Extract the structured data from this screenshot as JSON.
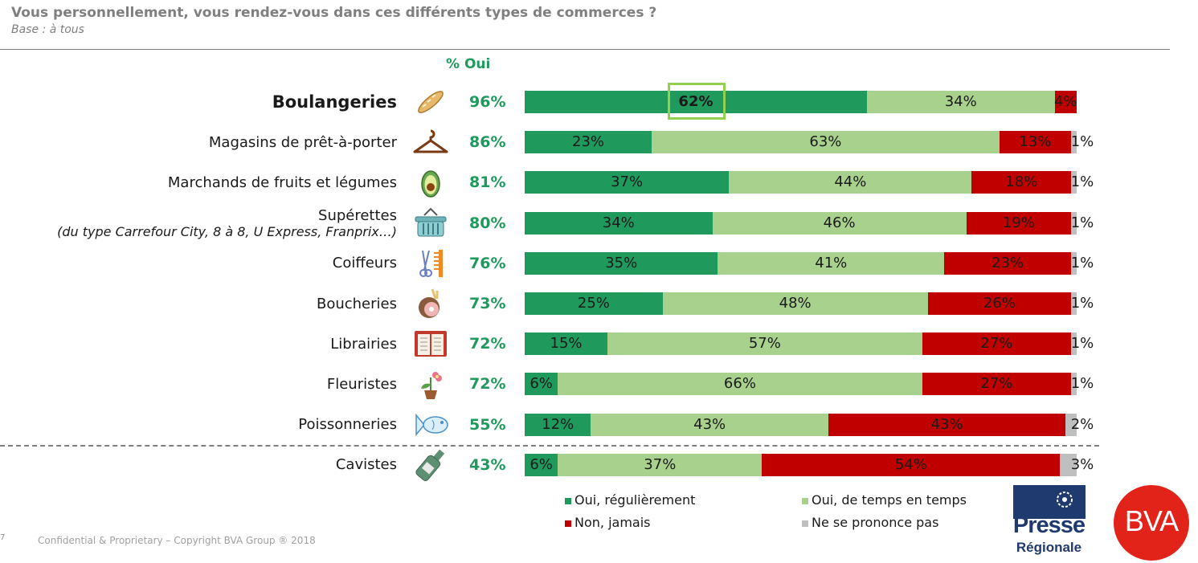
{
  "header": {
    "title": "Vous personnellement, vous rendez-vous dans ces différents types de commerces ?",
    "subtitle": "Base : à tous",
    "oui_column": "% Oui"
  },
  "colors": {
    "regulierement": "#1f9a5c",
    "de_temps_en_temps": "#a9d18e",
    "jamais": "#c00000",
    "nsp": "#bfbfbf",
    "oui_text": "#1f9a5c"
  },
  "chart_data": {
    "type": "bar",
    "orientation": "horizontal",
    "stacked": true,
    "percent_scale": true,
    "series_names": [
      "Oui, régulièrement",
      "Oui, de temps en temps",
      "Non, jamais",
      "Ne se prononce pas"
    ],
    "rows": [
      {
        "category": "Boulangeries",
        "bold": true,
        "icon": "baguette-icon",
        "oui": "96%",
        "values": [
          62,
          34,
          4,
          0
        ],
        "labels": [
          "62%",
          "34%",
          "4%",
          ""
        ]
      },
      {
        "category": "Magasins de prêt-à-porter",
        "icon": "hanger-icon",
        "oui": "86%",
        "values": [
          23,
          63,
          13,
          1
        ],
        "labels": [
          "23%",
          "63%",
          "13%",
          "1%"
        ]
      },
      {
        "category": "Marchands de fruits et légumes",
        "icon": "avocado-icon",
        "oui": "81%",
        "values": [
          37,
          44,
          18,
          1
        ],
        "labels": [
          "37%",
          "44%",
          "18%",
          "1%"
        ]
      },
      {
        "category": "Supérettes",
        "subcategory": "(du type Carrefour City, 8 à 8, U Express, Franprix…)",
        "icon": "basket-icon",
        "oui": "80%",
        "values": [
          34,
          46,
          19,
          1
        ],
        "labels": [
          "34%",
          "46%",
          "19%",
          "1%"
        ]
      },
      {
        "category": "Coiffeurs",
        "icon": "scissors-comb-icon",
        "oui": "76%",
        "values": [
          35,
          41,
          23,
          1
        ],
        "labels": [
          "35%",
          "41%",
          "23%",
          "1%"
        ]
      },
      {
        "category": "Boucheries",
        "icon": "ham-icon",
        "oui": "73%",
        "values": [
          25,
          48,
          26,
          1
        ],
        "labels": [
          "25%",
          "48%",
          "26%",
          "1%"
        ]
      },
      {
        "category": "Librairies",
        "icon": "book-icon",
        "oui": "72%",
        "values": [
          15,
          57,
          27,
          1
        ],
        "labels": [
          "15%",
          "57%",
          "27%",
          "1%"
        ]
      },
      {
        "category": "Fleuristes",
        "icon": "flower-pot-icon",
        "oui": "72%",
        "values": [
          6,
          66,
          27,
          1
        ],
        "labels": [
          "6%",
          "66%",
          "27%",
          "1%"
        ]
      },
      {
        "category": "Poissonneries",
        "icon": "fish-icon",
        "oui": "55%",
        "values": [
          12,
          43,
          43,
          2
        ],
        "labels": [
          "12%",
          "43%",
          "43%",
          "2%"
        ]
      },
      {
        "category": "Cavistes",
        "icon": "wine-bottle-icon",
        "oui": "43%",
        "values": [
          6,
          37,
          54,
          3
        ],
        "labels": [
          "6%",
          "37%",
          "54%",
          "3%"
        ]
      }
    ],
    "highlighted_value": "62%"
  },
  "legend": {
    "regulierement": "Oui, régulièrement",
    "de_temps_en_temps": "Oui, de temps en temps",
    "jamais": "Non, jamais",
    "nsp": "Ne se prononce pas"
  },
  "footer": {
    "copyright": "Confidential & Proprietary – Copyright BVA Group ®  2018",
    "page_mark": "7"
  },
  "logos": {
    "presse_line1": "Presse",
    "presse_line2": "Régionale",
    "bva": "BVA"
  }
}
